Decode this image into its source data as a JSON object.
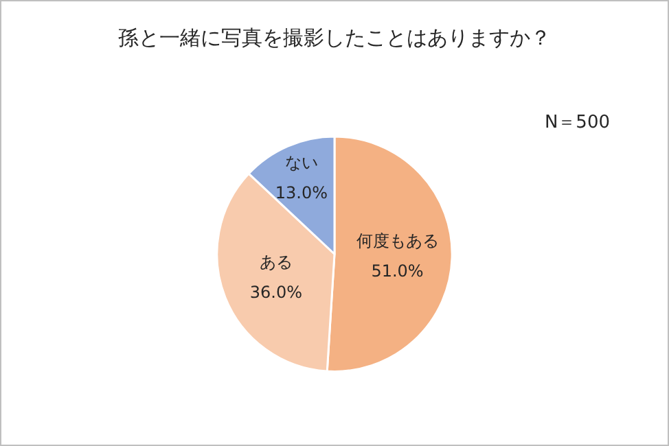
{
  "chart_data": {
    "type": "pie",
    "title": "孫と一緒に写真を撮影したことはありますか？",
    "categories": [
      "何度もある",
      "ある",
      "ない"
    ],
    "values": [
      51.0,
      36.0,
      13.0
    ],
    "value_labels": [
      "51.0%",
      "36.0%",
      "13.0%"
    ],
    "colors": [
      "#f4b183",
      "#f8cbad",
      "#8faadc"
    ],
    "annotations": [
      "N＝500"
    ],
    "legend": false
  }
}
